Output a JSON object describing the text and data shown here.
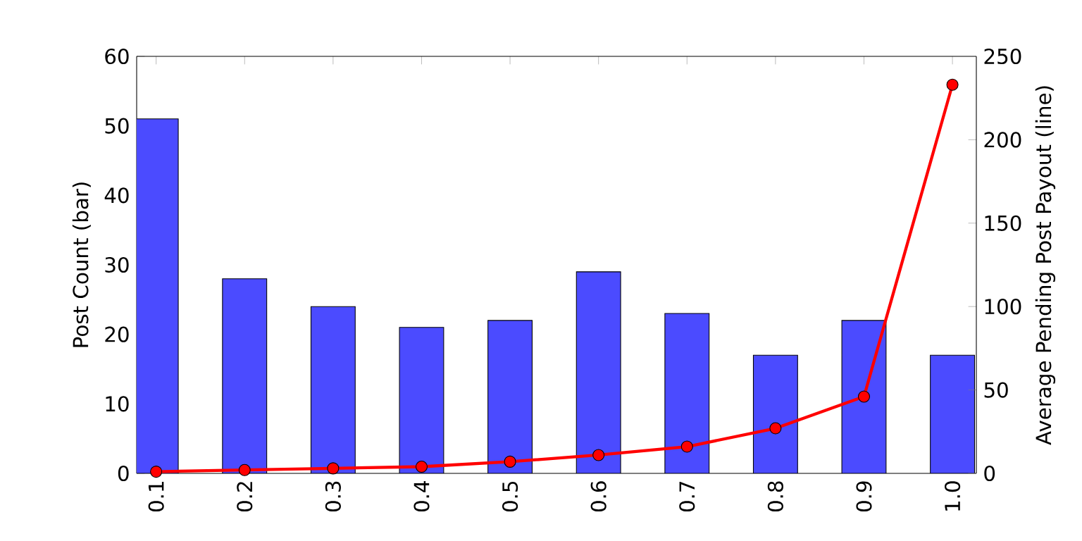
{
  "chart_data": {
    "type": "bar",
    "ylabel": "Post Count (bar)",
    "y2label": "Average Pending Post Payout (line)",
    "categories": [
      "0.1",
      "0.2",
      "0.3",
      "0.4",
      "0.5",
      "0.6",
      "0.7",
      "0.8",
      "0.9",
      "1.0"
    ],
    "series": [
      {
        "color": "#4b4bff",
        "values": [
          51,
          28,
          24,
          21,
          22,
          29,
          23,
          17,
          22,
          17
        ]
      },
      {
        "type": "line",
        "axis": "y2",
        "color": "#ff0000",
        "marker": "circle",
        "values": [
          1,
          2,
          3,
          4,
          7,
          11,
          16,
          27,
          46,
          233
        ]
      }
    ],
    "ylim": [
      0,
      60
    ],
    "yticks": [
      0,
      10,
      20,
      30,
      40,
      50,
      60
    ],
    "y2lim": [
      0,
      250
    ],
    "y2ticks": [
      0,
      50,
      100,
      150,
      200,
      250
    ]
  }
}
